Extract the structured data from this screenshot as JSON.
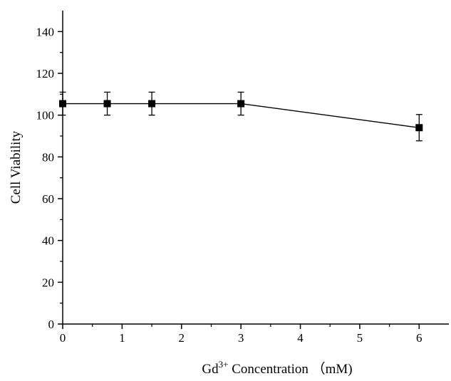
{
  "chart_data": {
    "type": "line",
    "title": "",
    "xlabel": {
      "base": "Gd",
      "superscript": "3+",
      "rest": " Concentration （mM)"
    },
    "ylabel": "Cell Viability",
    "xlim": [
      0,
      6.5
    ],
    "ylim": [
      0,
      150
    ],
    "x_ticks": [
      0,
      1,
      2,
      3,
      4,
      5,
      6
    ],
    "y_ticks": [
      0,
      20,
      40,
      60,
      80,
      100,
      120,
      140
    ],
    "grid": false,
    "legend": "none",
    "marker": "square",
    "color": "#000000",
    "series": [
      {
        "x": [
          0,
          0.75,
          1.5,
          3,
          6
        ],
        "y": [
          105.5,
          105.5,
          105.5,
          105.5,
          94
        ],
        "error": [
          5.5,
          5.5,
          5.5,
          5.5,
          6.3
        ]
      }
    ]
  }
}
